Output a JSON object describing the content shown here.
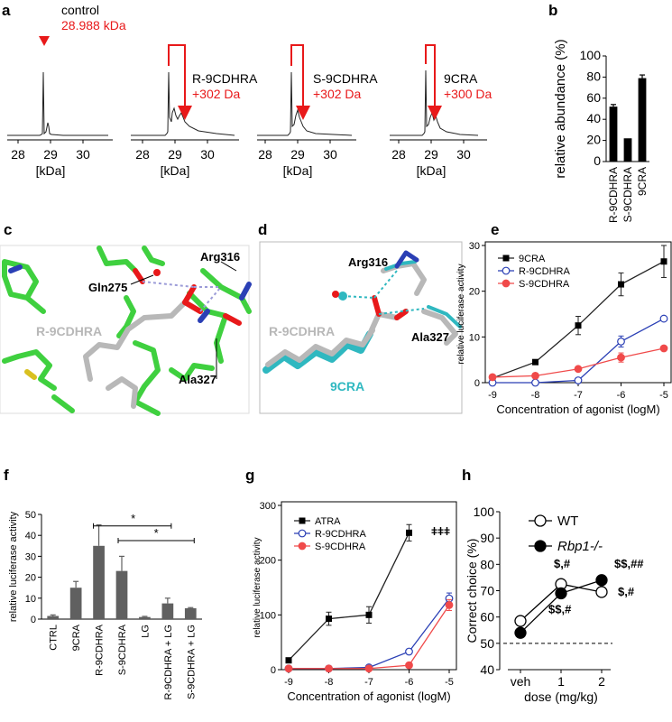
{
  "panel_letters": [
    "a",
    "b",
    "c",
    "d",
    "e",
    "f",
    "g",
    "h"
  ],
  "panel_a": {
    "spectra": [
      {
        "title": "control",
        "mass": "28.988 kDa",
        "shift": "",
        "ticks": [
          "28",
          "29",
          "30"
        ],
        "unit": "[kDa]"
      },
      {
        "title": "R-9CDHRA",
        "mass": "",
        "shift": "+302 Da",
        "ticks": [
          "28",
          "29",
          "30"
        ],
        "unit": "[kDa]"
      },
      {
        "title": "S-9CDHRA",
        "mass": "",
        "shift": "+302 Da",
        "ticks": [
          "28",
          "29",
          "30"
        ],
        "unit": "[kDa]"
      },
      {
        "title": "9CRA",
        "mass": "",
        "shift": "+300 Da",
        "ticks": [
          "28",
          "29",
          "30"
        ],
        "unit": "[kDa]"
      }
    ]
  },
  "panel_c": {
    "labels": [
      "Arg316",
      "Gln275",
      "R-9CDHRA",
      "Ala327"
    ]
  },
  "panel_d": {
    "labels": [
      "Arg316",
      "R-9CDHRA",
      "Ala327",
      "9CRA"
    ]
  },
  "colors": {
    "red": "#e8191a",
    "blue": "#2a3fb5",
    "pink": "#f04a4a",
    "bar": "#606060",
    "green": "#3fd03f",
    "cyan": "#2fb8c0",
    "grey": "#b8b8b8"
  },
  "chart_data": [
    {
      "id": "b",
      "type": "bar",
      "ylabel": "relative  abundance (%)",
      "categories": [
        "R-9CDHRA",
        "S-9CDHRA",
        "9CRA"
      ],
      "values": [
        52,
        22,
        79
      ],
      "errors": [
        2,
        0,
        3
      ],
      "ylim": [
        0,
        100
      ],
      "yticks": [
        "0",
        "20",
        "40",
        "60",
        "80",
        "100"
      ]
    },
    {
      "id": "e",
      "type": "line",
      "ylabel": "relative luciferase activity",
      "xlabel": "Concentration of agonist (logM)",
      "x": [
        -9,
        -8,
        -7,
        -6,
        -5
      ],
      "xticks": [
        "-9",
        "-8",
        "-7",
        "-6",
        "-5"
      ],
      "yticks": [
        "0",
        "10",
        "20",
        "30"
      ],
      "ylim": [
        0,
        30
      ],
      "series": [
        {
          "name": "9CRA",
          "values": [
            1,
            4.5,
            12.5,
            21.5,
            26.5
          ],
          "errors": [
            0,
            0.5,
            2,
            2.5,
            3.5
          ]
        },
        {
          "name": "R-9CDHRA",
          "values": [
            0,
            0,
            0.5,
            9,
            14
          ],
          "errors": [
            0,
            0,
            0,
            1.2,
            0
          ]
        },
        {
          "name": "S-9CDHRA",
          "values": [
            1.2,
            1.5,
            3,
            5.5,
            7.5
          ],
          "errors": [
            0,
            0,
            0,
            1,
            0
          ]
        }
      ]
    },
    {
      "id": "f",
      "type": "bar",
      "ylabel": "relative luciferase activity",
      "categories": [
        "CTRL",
        "9CRA",
        "R-9CDHRA",
        "S-9CDHRA",
        "LG",
        "R-9CDHRA + LG",
        "S-9CDHRA + LG"
      ],
      "values": [
        1.5,
        15,
        35,
        23,
        1,
        7.5,
        5.2
      ],
      "errors": [
        0.5,
        3,
        10,
        7,
        0.3,
        2.5,
        0.3
      ],
      "ylim": [
        0,
        50
      ],
      "yticks": [
        "0",
        "10",
        "20",
        "30",
        "40",
        "50"
      ],
      "sig": [
        "*",
        "*"
      ]
    },
    {
      "id": "g",
      "type": "line",
      "ylabel": "relative luciferase activity",
      "xlabel": "Concentration of agonist (logM)",
      "x": [
        -9,
        -8,
        -7,
        -6,
        -5
      ],
      "xticks": [
        "-9",
        "-8",
        "-7",
        "-6",
        "-5"
      ],
      "yticks": [
        "0",
        "100",
        "200",
        "300"
      ],
      "ylim": [
        0,
        300
      ],
      "annotation": "ǂǂǂ",
      "series": [
        {
          "name": "ATRA",
          "values": [
            17,
            93,
            100,
            250,
            null
          ],
          "errors": [
            0,
            12,
            15,
            15,
            0
          ]
        },
        {
          "name": "R-9CDHRA",
          "values": [
            2,
            2,
            4,
            33,
            130
          ],
          "errors": [
            0,
            0,
            0,
            0,
            10
          ]
        },
        {
          "name": "S-9CDHRA",
          "values": [
            2,
            2,
            2,
            8,
            118
          ],
          "errors": [
            0,
            0,
            0,
            0,
            10
          ]
        }
      ]
    },
    {
      "id": "h",
      "type": "line",
      "ylabel": "Correct choice (%)",
      "xlabel": "dose (mg/kg)",
      "categories": [
        "veh",
        "1",
        "2"
      ],
      "yticks": [
        "40",
        "50",
        "60",
        "70",
        "80",
        "90",
        "100"
      ],
      "ylim": [
        40,
        100
      ],
      "reference_line": 50,
      "series": [
        {
          "name": "WT",
          "values": [
            58.5,
            72.5,
            69.5
          ],
          "labels": [
            "",
            "$,#",
            "$,#"
          ]
        },
        {
          "name": "Rbp1-/-",
          "values": [
            54,
            69,
            74
          ],
          "labels": [
            "",
            "$$,#",
            "$$,##"
          ]
        }
      ]
    }
  ]
}
